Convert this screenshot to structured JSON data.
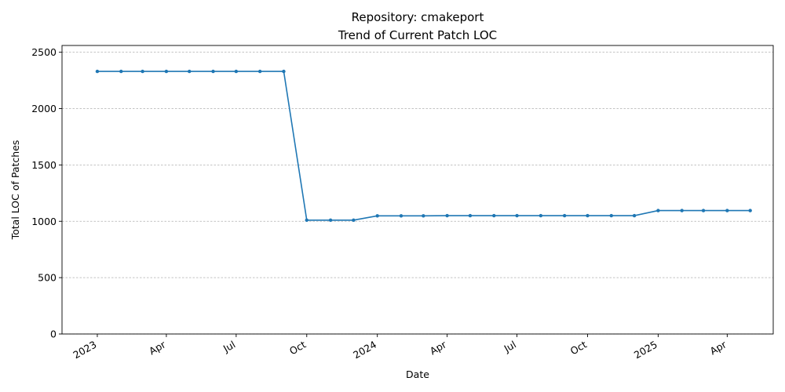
{
  "chart_data": {
    "type": "line",
    "title": "Repository: cmakeport",
    "subtitle": "Trend of Current Patch LOC",
    "xlabel": "Date",
    "ylabel": "Total LOC of Patches",
    "xlim": [
      "2022-11-16",
      "2025-05-31"
    ],
    "ylim": [
      0,
      2560
    ],
    "yticks": [
      0,
      500,
      1000,
      1500,
      2000,
      2500
    ],
    "xticks": [
      {
        "date": "2023-01-01",
        "label": "2023"
      },
      {
        "date": "2023-04-01",
        "label": "Apr"
      },
      {
        "date": "2023-07-01",
        "label": "Jul"
      },
      {
        "date": "2023-10-01",
        "label": "Oct"
      },
      {
        "date": "2024-01-01",
        "label": "2024"
      },
      {
        "date": "2024-04-01",
        "label": "Apr"
      },
      {
        "date": "2024-07-01",
        "label": "Jul"
      },
      {
        "date": "2024-10-01",
        "label": "Oct"
      },
      {
        "date": "2025-01-01",
        "label": "2025"
      },
      {
        "date": "2025-04-01",
        "label": "Apr"
      }
    ],
    "grid": "y",
    "color": "#1f77b4",
    "x": [
      "2023-01-01",
      "2023-02-01",
      "2023-03-01",
      "2023-04-01",
      "2023-05-01",
      "2023-06-01",
      "2023-07-01",
      "2023-08-01",
      "2023-09-01",
      "2023-10-01",
      "2023-11-01",
      "2023-12-01",
      "2024-01-01",
      "2024-02-01",
      "2024-03-01",
      "2024-04-01",
      "2024-05-01",
      "2024-06-01",
      "2024-07-01",
      "2024-08-01",
      "2024-09-01",
      "2024-10-01",
      "2024-11-01",
      "2024-12-01",
      "2025-01-01",
      "2025-02-01",
      "2025-03-01",
      "2025-04-01",
      "2025-05-01"
    ],
    "y": [
      2330,
      2330,
      2330,
      2330,
      2330,
      2330,
      2330,
      2330,
      2330,
      1010,
      1010,
      1010,
      1048,
      1048,
      1048,
      1050,
      1050,
      1050,
      1050,
      1050,
      1050,
      1050,
      1050,
      1050,
      1095,
      1095,
      1095,
      1095,
      1095
    ]
  }
}
